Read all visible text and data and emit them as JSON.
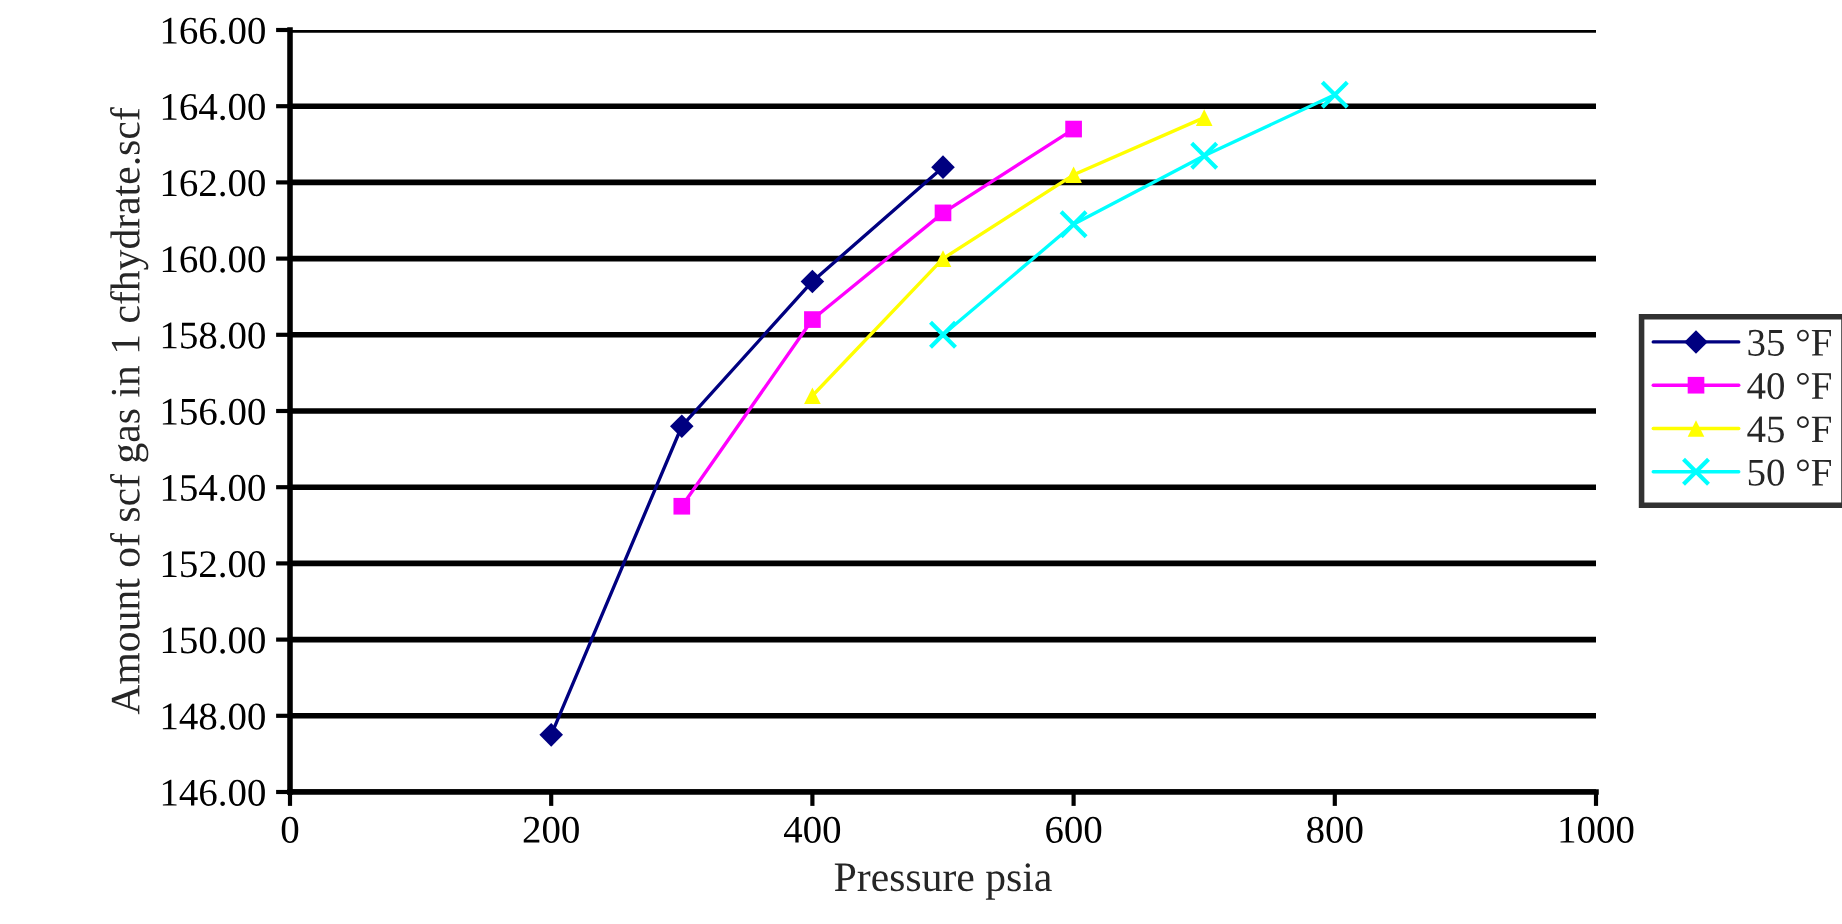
{
  "chart_data": {
    "type": "line",
    "xlabel": "Pressure psia",
    "ylabel": "Amount of scf gas in 1 cfhydrate.scf",
    "xlim": [
      0,
      1000
    ],
    "xticks": [
      0,
      200,
      400,
      600,
      800,
      1000
    ],
    "ylim": [
      146,
      166
    ],
    "yticks": [
      {
        "value": 146,
        "label": "146.00"
      },
      {
        "value": 148,
        "label": "148.00"
      },
      {
        "value": 150,
        "label": "150.00"
      },
      {
        "value": 152,
        "label": "152.00"
      },
      {
        "value": 154,
        "label": "154.00"
      },
      {
        "value": 156,
        "label": "156.00"
      },
      {
        "value": 158,
        "label": "158.00"
      },
      {
        "value": 160,
        "label": "160.00"
      },
      {
        "value": 162,
        "label": "162.00"
      },
      {
        "value": 164,
        "label": "164.00"
      },
      {
        "value": 166,
        "label": "166.00"
      }
    ],
    "grid": "y",
    "legend": "right",
    "series": [
      {
        "name": "35 °F",
        "color": "#000080",
        "marker": "diamond",
        "x": [
          200,
          300,
          400,
          500
        ],
        "values": [
          147.5,
          155.6,
          159.4,
          162.4
        ]
      },
      {
        "name": "40 °F",
        "color": "#ff00ff",
        "marker": "square",
        "x": [
          300,
          400,
          500,
          600
        ],
        "values": [
          153.5,
          158.4,
          161.2,
          163.4
        ]
      },
      {
        "name": "45 °F",
        "color": "#ffff00",
        "marker": "triangle",
        "x": [
          400,
          500,
          600,
          700
        ],
        "values": [
          156.4,
          160.0,
          162.2,
          163.7
        ]
      },
      {
        "name": "50 °F",
        "color": "#00ffff",
        "marker": "cross",
        "x": [
          500,
          600,
          700,
          800
        ],
        "values": [
          158.0,
          160.9,
          162.7,
          164.3
        ]
      }
    ]
  }
}
